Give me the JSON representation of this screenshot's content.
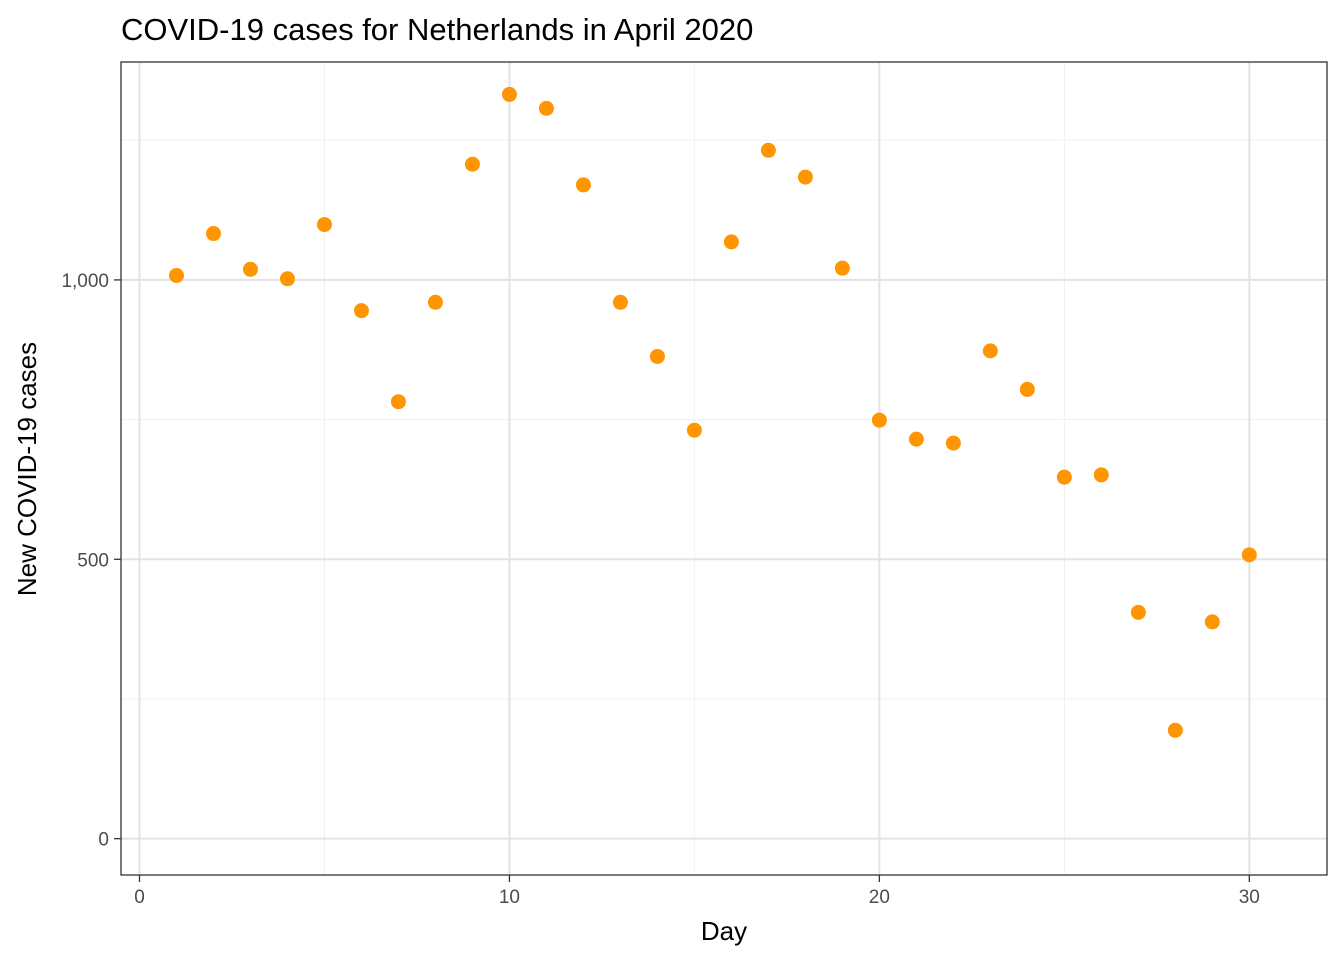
{
  "chart_data": {
    "type": "scatter",
    "title": "COVID-19 cases for Netherlands in April 2020",
    "xlabel": "Day",
    "ylabel": "New COVID-19 cases",
    "xlim": [
      -0.5,
      32.1
    ],
    "ylim": [
      -65,
      1390
    ],
    "x_ticks": [
      0,
      10,
      20,
      30
    ],
    "x_tick_labels": [
      "0",
      "10",
      "20",
      "30"
    ],
    "y_ticks": [
      0,
      500,
      1000
    ],
    "y_tick_labels": [
      "0",
      "500",
      "1,000"
    ],
    "x_minor_gridlines": [
      5,
      15,
      25
    ],
    "y_minor_gridlines": [
      250,
      750,
      1250
    ],
    "grid": true,
    "point_color": "#FF9500",
    "x": [
      1,
      2,
      3,
      4,
      5,
      6,
      7,
      8,
      9,
      10,
      11,
      12,
      13,
      14,
      15,
      16,
      17,
      18,
      19,
      20,
      21,
      22,
      23,
      24,
      25,
      26,
      27,
      28,
      29,
      30
    ],
    "y": [
      1008,
      1083,
      1019,
      1002,
      1099,
      945,
      782,
      960,
      1207,
      1332,
      1307,
      1170,
      960,
      863,
      731,
      1068,
      1232,
      1184,
      1021,
      749,
      715,
      708,
      873,
      804,
      647,
      651,
      405,
      194,
      388,
      508
    ]
  }
}
